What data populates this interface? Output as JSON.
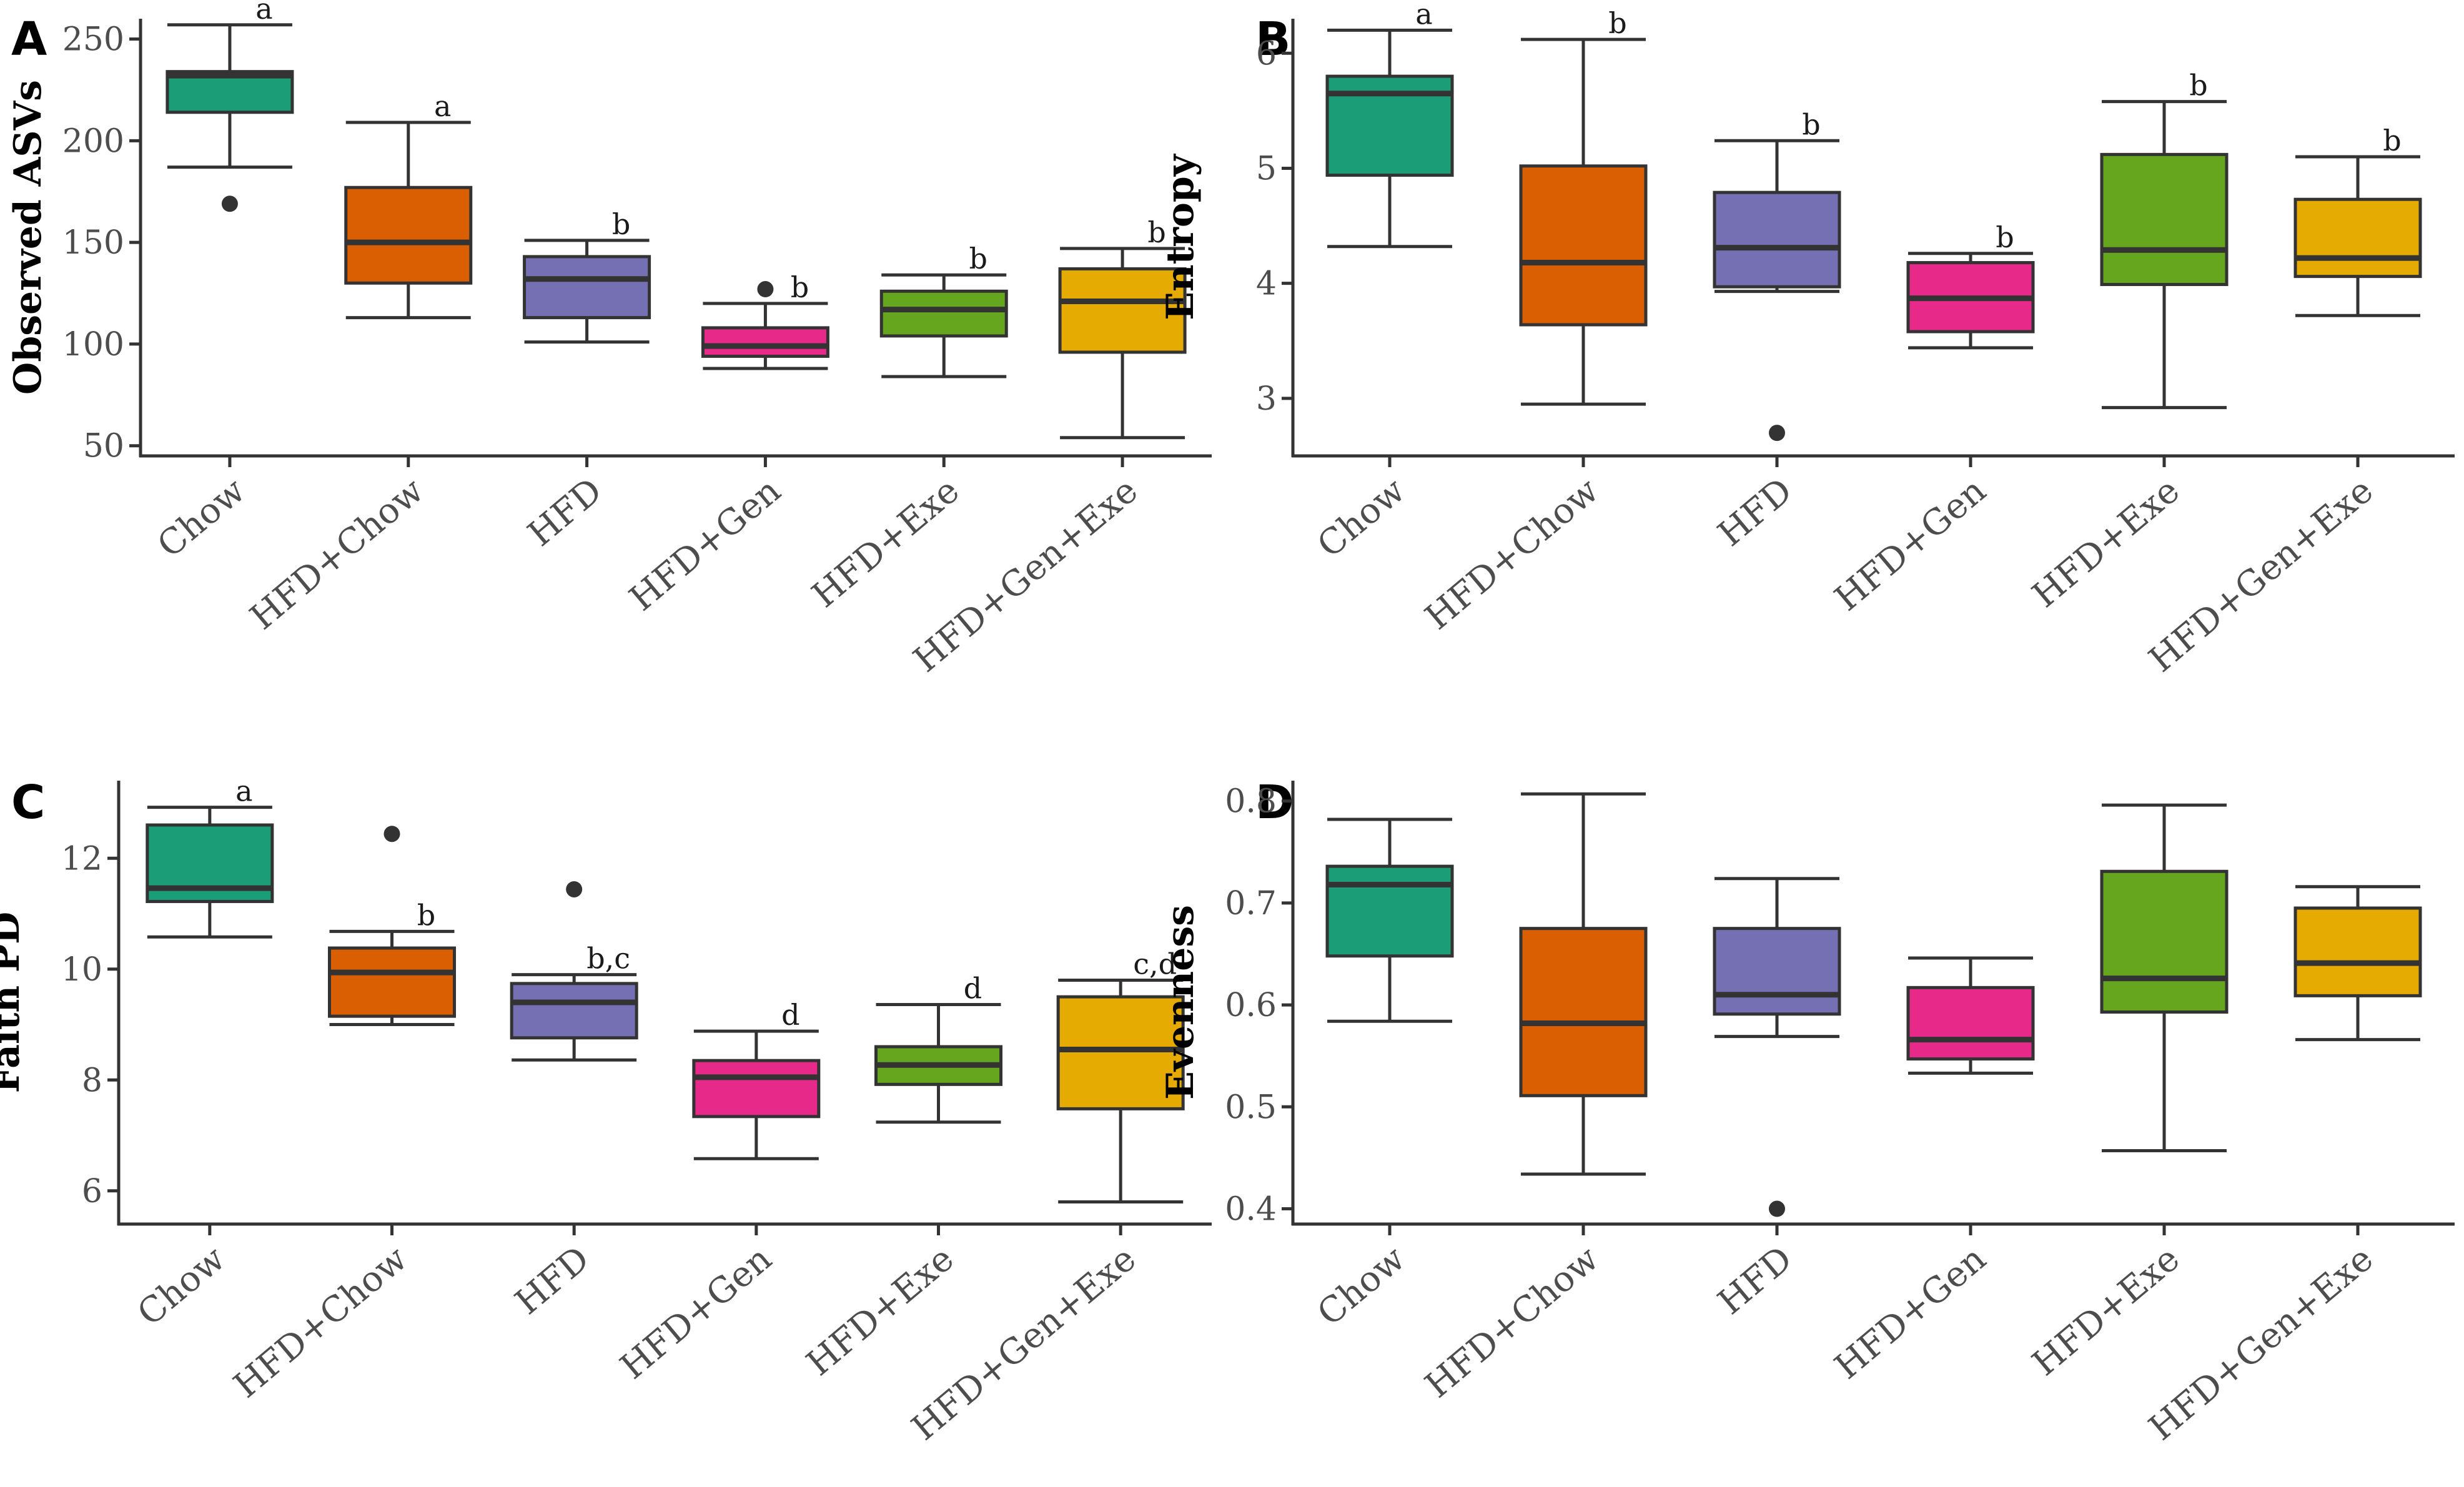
{
  "colors": {
    "Chow": "#1b9e77",
    "HFD+Chow": "#d95f02",
    "HFD": "#7570b3",
    "HFD+Gen": "#e7298a",
    "HFD+Exe": "#66a61e",
    "HFD+Gen+Exe": "#e6ab02"
  },
  "chart_data": [
    {
      "type": "box",
      "panel": "A",
      "ylabel": "Observed ASVs",
      "ylim": [
        45,
        260
      ],
      "yticks": [
        50,
        100,
        150,
        200,
        250
      ],
      "categories": [
        "Chow",
        "HFD+Chow",
        "HFD",
        "HFD+Gen",
        "HFD+Exe",
        "HFD+Gen+Exe"
      ],
      "boxes": [
        {
          "min": 187,
          "q1": 214,
          "median": 232,
          "q3": 234,
          "max": 257,
          "outliers": [
            169
          ],
          "letter": "a"
        },
        {
          "min": 113,
          "q1": 130,
          "median": 150,
          "q3": 177,
          "max": 209,
          "outliers": [],
          "letter": "a"
        },
        {
          "min": 101,
          "q1": 113,
          "median": 132,
          "q3": 143,
          "max": 151,
          "outliers": [],
          "letter": "b"
        },
        {
          "min": 88,
          "q1": 94,
          "median": 99,
          "q3": 108,
          "max": 120,
          "outliers": [
            127
          ],
          "letter": "b"
        },
        {
          "min": 84,
          "q1": 104,
          "median": 117,
          "q3": 126,
          "max": 134,
          "outliers": [],
          "letter": "b"
        },
        {
          "min": 54,
          "q1": 96,
          "median": 121,
          "q3": 137,
          "max": 147,
          "outliers": [],
          "letter": "b"
        }
      ]
    },
    {
      "type": "box",
      "panel": "B",
      "ylabel": "Entropy",
      "ylim": [
        2.5,
        6.3
      ],
      "yticks": [
        3,
        4,
        5,
        6
      ],
      "categories": [
        "Chow",
        "HFD+Chow",
        "HFD",
        "HFD+Gen",
        "HFD+Exe",
        "HFD+Gen+Exe"
      ],
      "boxes": [
        {
          "min": 4.32,
          "q1": 4.94,
          "median": 5.65,
          "q3": 5.8,
          "max": 6.2,
          "outliers": [],
          "letter": "a"
        },
        {
          "min": 2.95,
          "q1": 3.64,
          "median": 4.18,
          "q3": 5.02,
          "max": 6.12,
          "outliers": [],
          "letter": "b"
        },
        {
          "min": 3.93,
          "q1": 3.97,
          "median": 4.31,
          "q3": 4.79,
          "max": 5.24,
          "outliers": [
            2.7
          ],
          "letter": "b"
        },
        {
          "min": 3.44,
          "q1": 3.58,
          "median": 3.87,
          "q3": 4.18,
          "max": 4.26,
          "outliers": [],
          "letter": "b"
        },
        {
          "min": 2.92,
          "q1": 3.99,
          "median": 4.29,
          "q3": 5.12,
          "max": 5.58,
          "outliers": [],
          "letter": "b"
        },
        {
          "min": 3.72,
          "q1": 4.06,
          "median": 4.22,
          "q3": 4.73,
          "max": 5.1,
          "outliers": [],
          "letter": "b"
        }
      ]
    },
    {
      "type": "box",
      "panel": "C",
      "ylabel": "Faith PD",
      "ylim": [
        5.4,
        13.4
      ],
      "yticks": [
        6,
        8,
        10,
        12
      ],
      "categories": [
        "Chow",
        "HFD+Chow",
        "HFD",
        "HFD+Gen",
        "HFD+Exe",
        "HFD+Gen+Exe"
      ],
      "boxes": [
        {
          "min": 10.58,
          "q1": 11.22,
          "median": 11.46,
          "q3": 12.6,
          "max": 12.92,
          "outliers": [],
          "letter": "a"
        },
        {
          "min": 9.0,
          "q1": 9.15,
          "median": 9.94,
          "q3": 10.38,
          "max": 10.68,
          "outliers": [
            12.44
          ],
          "letter": "b"
        },
        {
          "min": 8.36,
          "q1": 8.76,
          "median": 9.4,
          "q3": 9.74,
          "max": 9.9,
          "outliers": [
            11.44
          ],
          "letter": "b,c"
        },
        {
          "min": 6.58,
          "q1": 7.34,
          "median": 8.05,
          "q3": 8.35,
          "max": 8.88,
          "outliers": [],
          "letter": "d"
        },
        {
          "min": 7.24,
          "q1": 7.92,
          "median": 8.27,
          "q3": 8.6,
          "max": 9.36,
          "outliers": [],
          "letter": "d"
        },
        {
          "min": 5.8,
          "q1": 7.48,
          "median": 8.55,
          "q3": 9.5,
          "max": 9.8,
          "outliers": [],
          "letter": "c,d"
        }
      ]
    },
    {
      "type": "box",
      "panel": "D",
      "ylabel": "Evenness",
      "ylim": [
        0.385,
        0.82
      ],
      "yticks": [
        0.4,
        0.5,
        0.6,
        0.7,
        0.8
      ],
      "categories": [
        "Chow",
        "HFD+Chow",
        "HFD",
        "HFD+Gen",
        "HFD+Exe",
        "HFD+Gen+Exe"
      ],
      "boxes": [
        {
          "min": 0.584,
          "q1": 0.648,
          "median": 0.718,
          "q3": 0.736,
          "max": 0.782,
          "outliers": [],
          "letter": ""
        },
        {
          "min": 0.434,
          "q1": 0.511,
          "median": 0.582,
          "q3": 0.675,
          "max": 0.807,
          "outliers": [],
          "letter": ""
        },
        {
          "min": 0.569,
          "q1": 0.591,
          "median": 0.61,
          "q3": 0.675,
          "max": 0.724,
          "outliers": [
            0.4
          ],
          "letter": ""
        },
        {
          "min": 0.533,
          "q1": 0.547,
          "median": 0.566,
          "q3": 0.617,
          "max": 0.646,
          "outliers": [],
          "letter": ""
        },
        {
          "min": 0.457,
          "q1": 0.593,
          "median": 0.626,
          "q3": 0.731,
          "max": 0.796,
          "outliers": [],
          "letter": ""
        },
        {
          "min": 0.566,
          "q1": 0.609,
          "median": 0.641,
          "q3": 0.695,
          "max": 0.716,
          "outliers": [],
          "letter": ""
        }
      ]
    }
  ]
}
